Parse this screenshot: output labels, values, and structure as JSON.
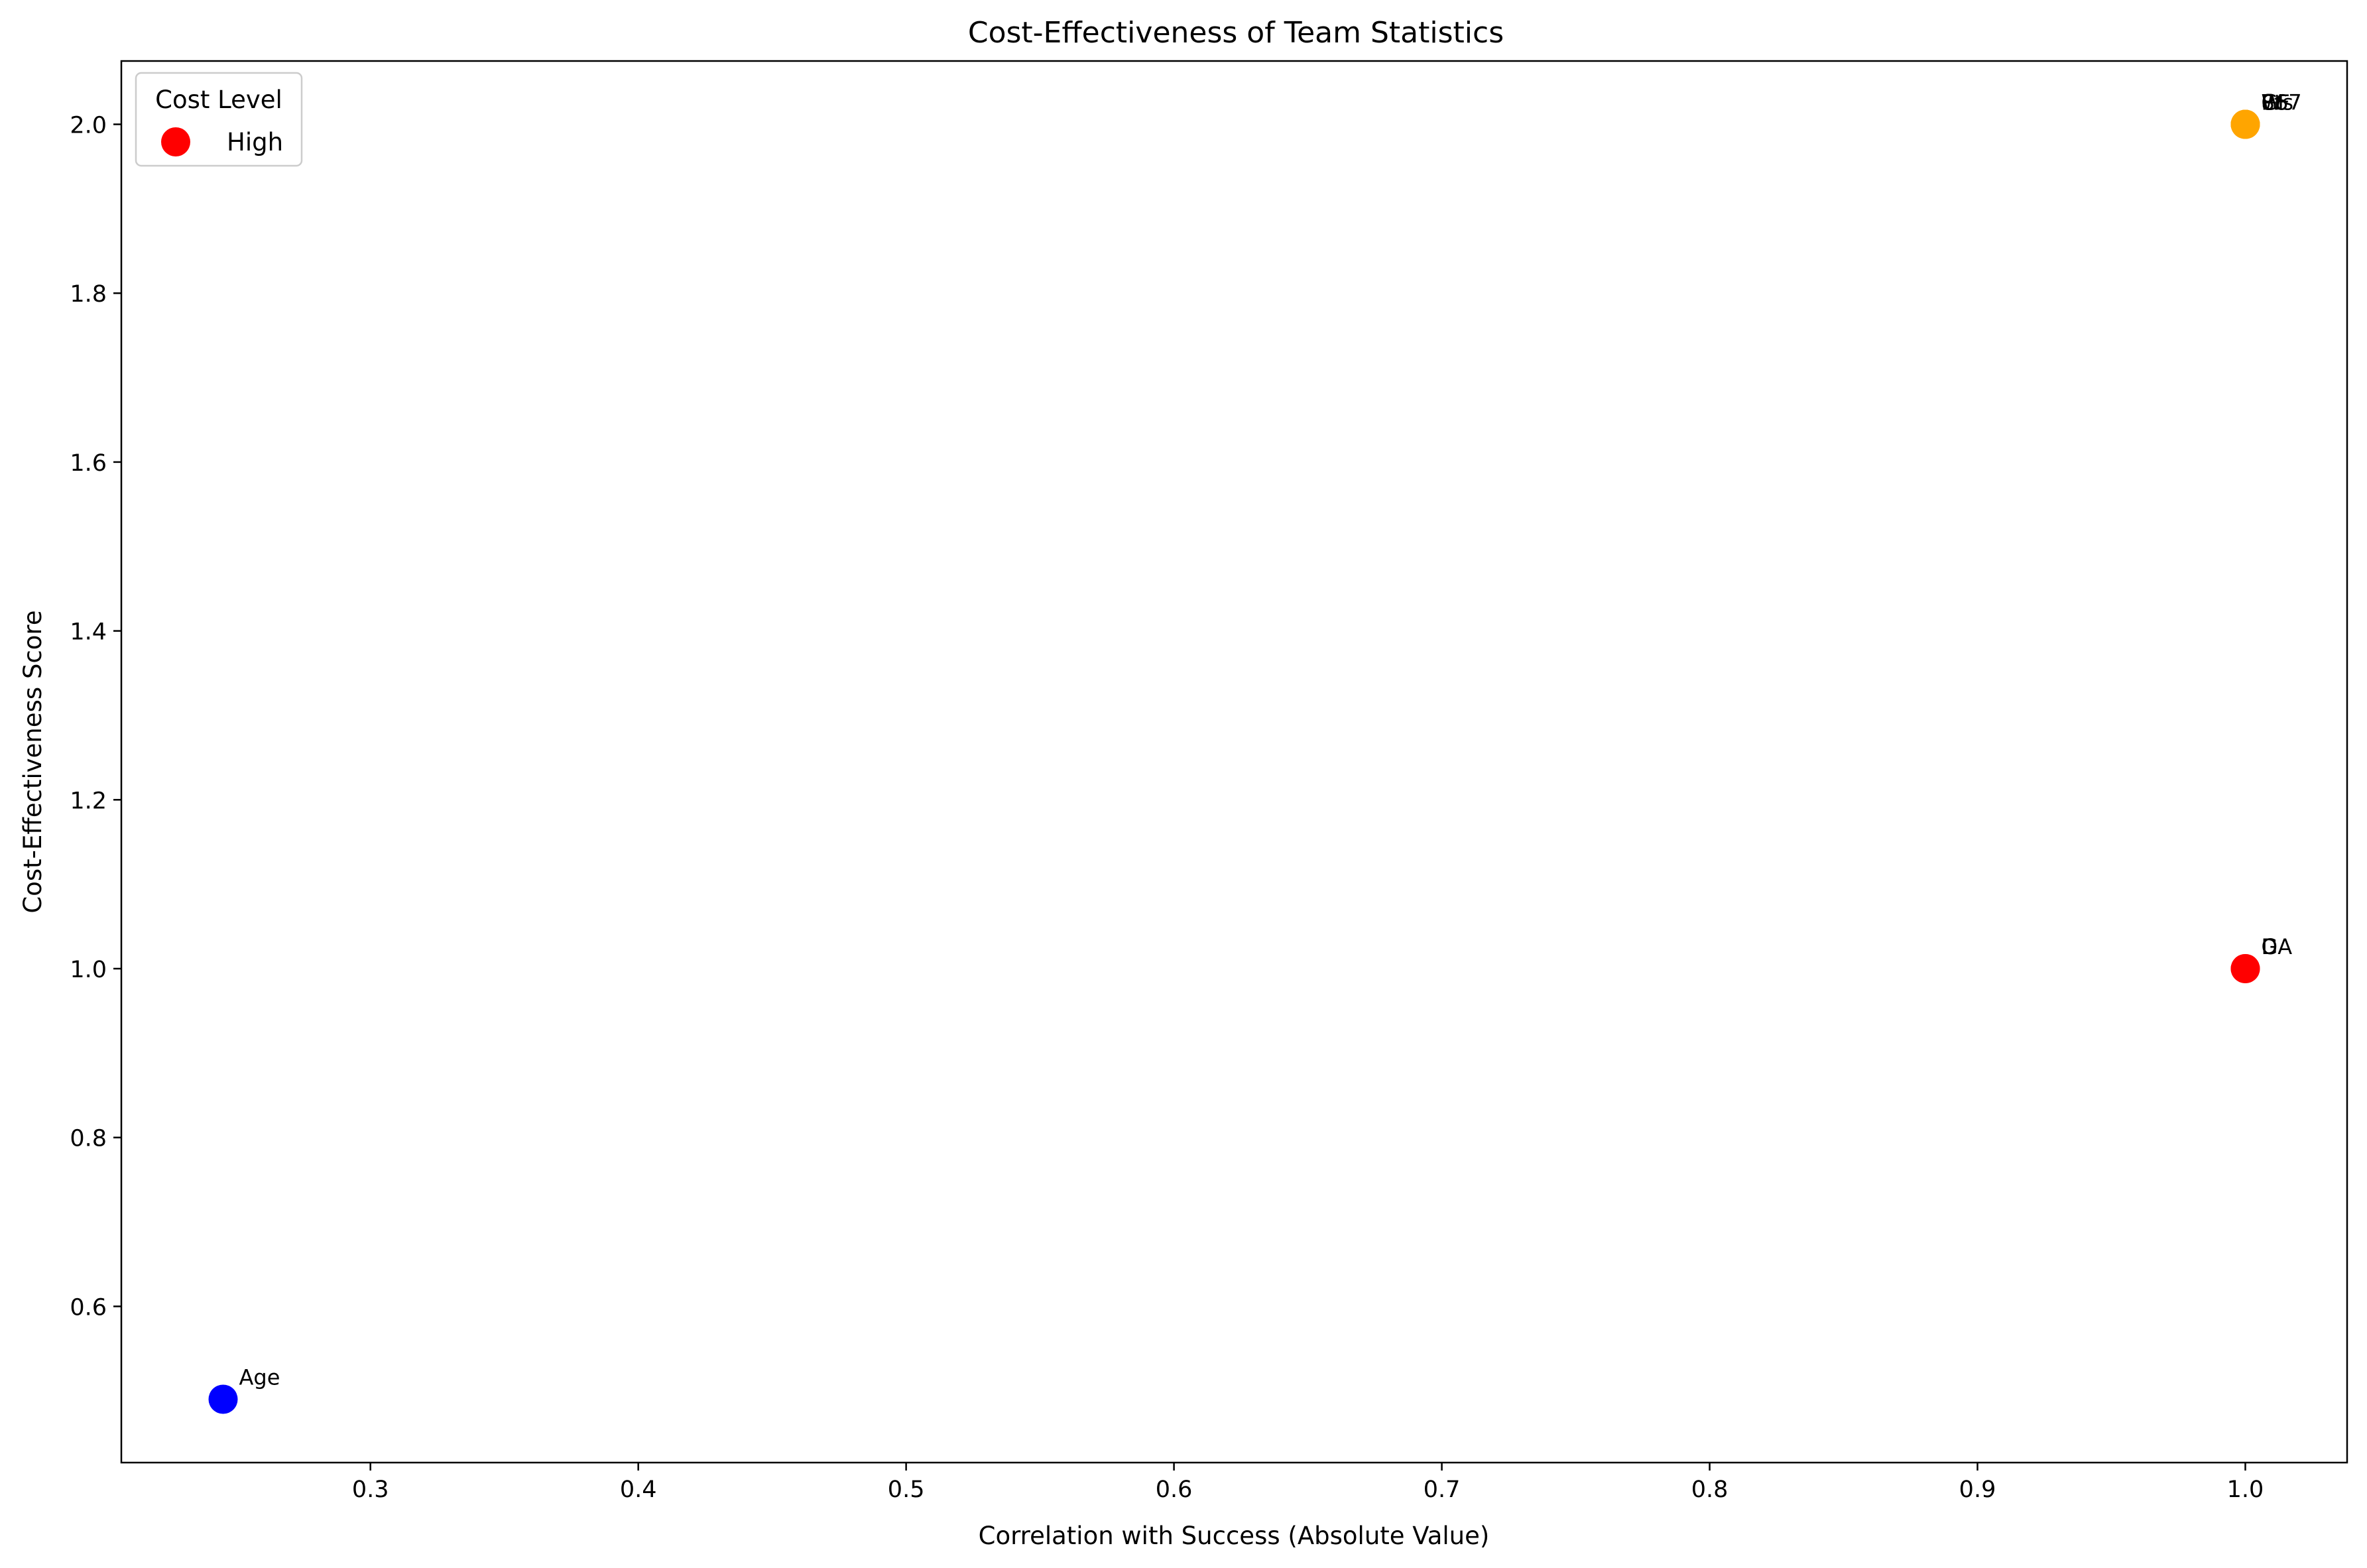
{
  "chart_data": {
    "type": "scatter",
    "title": "Cost-Effectiveness of Team Statistics",
    "xlabel": "Correlation with Success (Absolute Value)",
    "ylabel": "Cost-Effectiveness Score",
    "xlim": [
      0.207,
      1.038
    ],
    "ylim": [
      0.415,
      2.075
    ],
    "x_ticks": [
      0.3,
      0.4,
      0.5,
      0.6,
      0.7,
      0.8,
      0.9,
      1.0
    ],
    "x_tick_labels": [
      "0.3",
      "0.4",
      "0.5",
      "0.6",
      "0.7",
      "0.8",
      "0.9",
      "1.0"
    ],
    "y_ticks": [
      0.6,
      0.8,
      1.0,
      1.2,
      1.4,
      1.6,
      1.8,
      2.0
    ],
    "y_tick_labels": [
      "0.6",
      "0.8",
      "1.0",
      "1.2",
      "1.4",
      "1.6",
      "1.8",
      "2.0"
    ],
    "grid": false,
    "legend": {
      "title": "Cost Level",
      "position": "top-left",
      "entries": [
        {
          "label": "High",
          "color": "#ff0000"
        }
      ]
    },
    "points": [
      {
        "label": "Age",
        "x": 0.245,
        "y": 0.49,
        "color": "#0000ff"
      },
      {
        "label": "GA",
        "x": 1.0,
        "y": 1.0,
        "color": "#ff0000"
      },
      {
        "label": "D",
        "x": 1.0,
        "y": 1.0,
        "color": "#ff0000"
      },
      {
        "label": "W",
        "x": 1.0,
        "y": 2.0,
        "color": "#ffa500"
      },
      {
        "label": "GF",
        "x": 1.0,
        "y": 2.0,
        "color": "#ffa500"
      },
      {
        "label": "Pts",
        "x": 1.0,
        "y": 2.0,
        "color": "#ffa500"
      },
      {
        "label": "867",
        "x": 1.0,
        "y": 2.0,
        "color": "#ffa500"
      }
    ]
  }
}
